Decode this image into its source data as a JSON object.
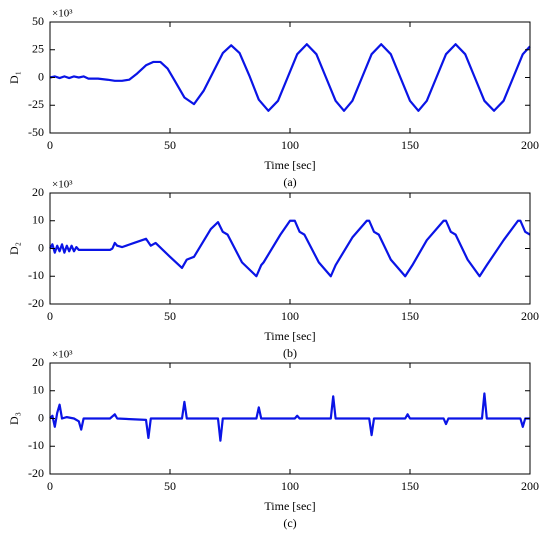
{
  "chart_data": [
    {
      "type": "line",
      "ylabel": "D₁",
      "multiplier": "×10³",
      "xlabel": "Time [sec]",
      "caption": "(a)",
      "xlim": [
        0,
        200
      ],
      "xticks": [
        0,
        50,
        100,
        150,
        200
      ],
      "ylim": [
        -50,
        50
      ],
      "yticks": [
        -50,
        -25,
        0,
        25,
        50
      ],
      "x": [
        0,
        2,
        4,
        6,
        8,
        10,
        12,
        14,
        16,
        20,
        24,
        27,
        30,
        33,
        36,
        40,
        43,
        46,
        49,
        52,
        56,
        60,
        64,
        68,
        72,
        75.5,
        79,
        83,
        87,
        91,
        95,
        99,
        103,
        107,
        111,
        115,
        119,
        122.5,
        126,
        130,
        134,
        138,
        142,
        146,
        150,
        153.5,
        157,
        161,
        165,
        169,
        173,
        177,
        181,
        185,
        189,
        193,
        197,
        200
      ],
      "series": [
        {
          "name": "D1",
          "color": "#0a14e6",
          "values": [
            0,
            1,
            -0.5,
            1,
            -0.5,
            1,
            0,
            1,
            -1,
            -1,
            -2,
            -3,
            -3,
            -2,
            3,
            11,
            14,
            14,
            8,
            -3,
            -18,
            -24,
            -12,
            5,
            22,
            29,
            22,
            2,
            -20,
            -30,
            -21,
            0,
            21,
            30,
            21,
            0,
            -21,
            -30,
            -21,
            0,
            21,
            30,
            21,
            0,
            -21,
            -30,
            -21,
            0,
            21,
            30,
            21,
            0,
            -21,
            -30,
            -21,
            0,
            21,
            28
          ]
        }
      ]
    },
    {
      "type": "line",
      "ylabel": "D₂",
      "multiplier": "×10³",
      "xlabel": "Time [sec]",
      "caption": "(b)",
      "xlim": [
        0,
        200
      ],
      "xticks": [
        0,
        50,
        100,
        150,
        200
      ],
      "ylim": [
        -20,
        20
      ],
      "yticks": [
        -20,
        -10,
        0,
        10,
        20
      ],
      "x": [
        0,
        1,
        2,
        3,
        4,
        5,
        6,
        7,
        8,
        9,
        10,
        11,
        12,
        14,
        20,
        25,
        26,
        27,
        28,
        30,
        35,
        40,
        42,
        44,
        50,
        55,
        57,
        60,
        67,
        70,
        72,
        74,
        80,
        86,
        88,
        89,
        96,
        100,
        102,
        104,
        106,
        112,
        117,
        119,
        126,
        132,
        133,
        135,
        137,
        142,
        148,
        151,
        157,
        164,
        165,
        167,
        169,
        174,
        179,
        182,
        189,
        195,
        196,
        198,
        200
      ],
      "series": [
        {
          "name": "D2",
          "color": "#0a14e6",
          "values": [
            0,
            1.5,
            -1.5,
            1,
            -1,
            1.5,
            -1.5,
            1,
            -1,
            1,
            -1,
            0.5,
            -0.5,
            -0.5,
            -0.5,
            -0.5,
            0,
            2,
            1,
            0.5,
            2,
            3.5,
            1,
            2,
            -3,
            -7,
            -4,
            -3,
            7,
            9.5,
            6,
            5,
            -5,
            -10,
            -6,
            -5,
            5,
            10,
            10,
            6,
            5,
            -5,
            -10,
            -6,
            4,
            10,
            10,
            6,
            5,
            -4,
            -10,
            -6,
            3,
            10,
            10,
            6,
            5,
            -4,
            -10,
            -6,
            3,
            10,
            10,
            6,
            5
          ]
        }
      ]
    },
    {
      "type": "line",
      "ylabel": "D₃",
      "multiplier": "×10³",
      "xlabel": "Time [sec]",
      "caption": "(c)",
      "xlim": [
        0,
        200
      ],
      "xticks": [
        0,
        50,
        100,
        150,
        200
      ],
      "ylim": [
        -20,
        20
      ],
      "yticks": [
        -20,
        -10,
        0,
        10,
        20
      ],
      "x": [
        0,
        1,
        2,
        3,
        4,
        5,
        7,
        10,
        12,
        13,
        14,
        25,
        27,
        28,
        40,
        41,
        42,
        55,
        56,
        57,
        70,
        71,
        72,
        86,
        87,
        88,
        102,
        103,
        104,
        117,
        118,
        119,
        133,
        134,
        135,
        148,
        149,
        150,
        164,
        165,
        166,
        180,
        181,
        182,
        196,
        197,
        198,
        200
      ],
      "series": [
        {
          "name": "D3",
          "color": "#0a14e6",
          "values": [
            0,
            1,
            -3,
            2,
            5,
            0,
            0.5,
            0,
            -1,
            -4,
            0,
            0,
            1.5,
            0,
            -0.5,
            -7,
            0,
            0,
            6,
            0,
            0,
            -8,
            0,
            0,
            4,
            0,
            0,
            1,
            0,
            0,
            8,
            0,
            0,
            -6,
            0,
            0,
            1.5,
            0,
            0,
            -2,
            0,
            0,
            9,
            0,
            0,
            -3,
            0,
            0
          ]
        }
      ]
    }
  ]
}
